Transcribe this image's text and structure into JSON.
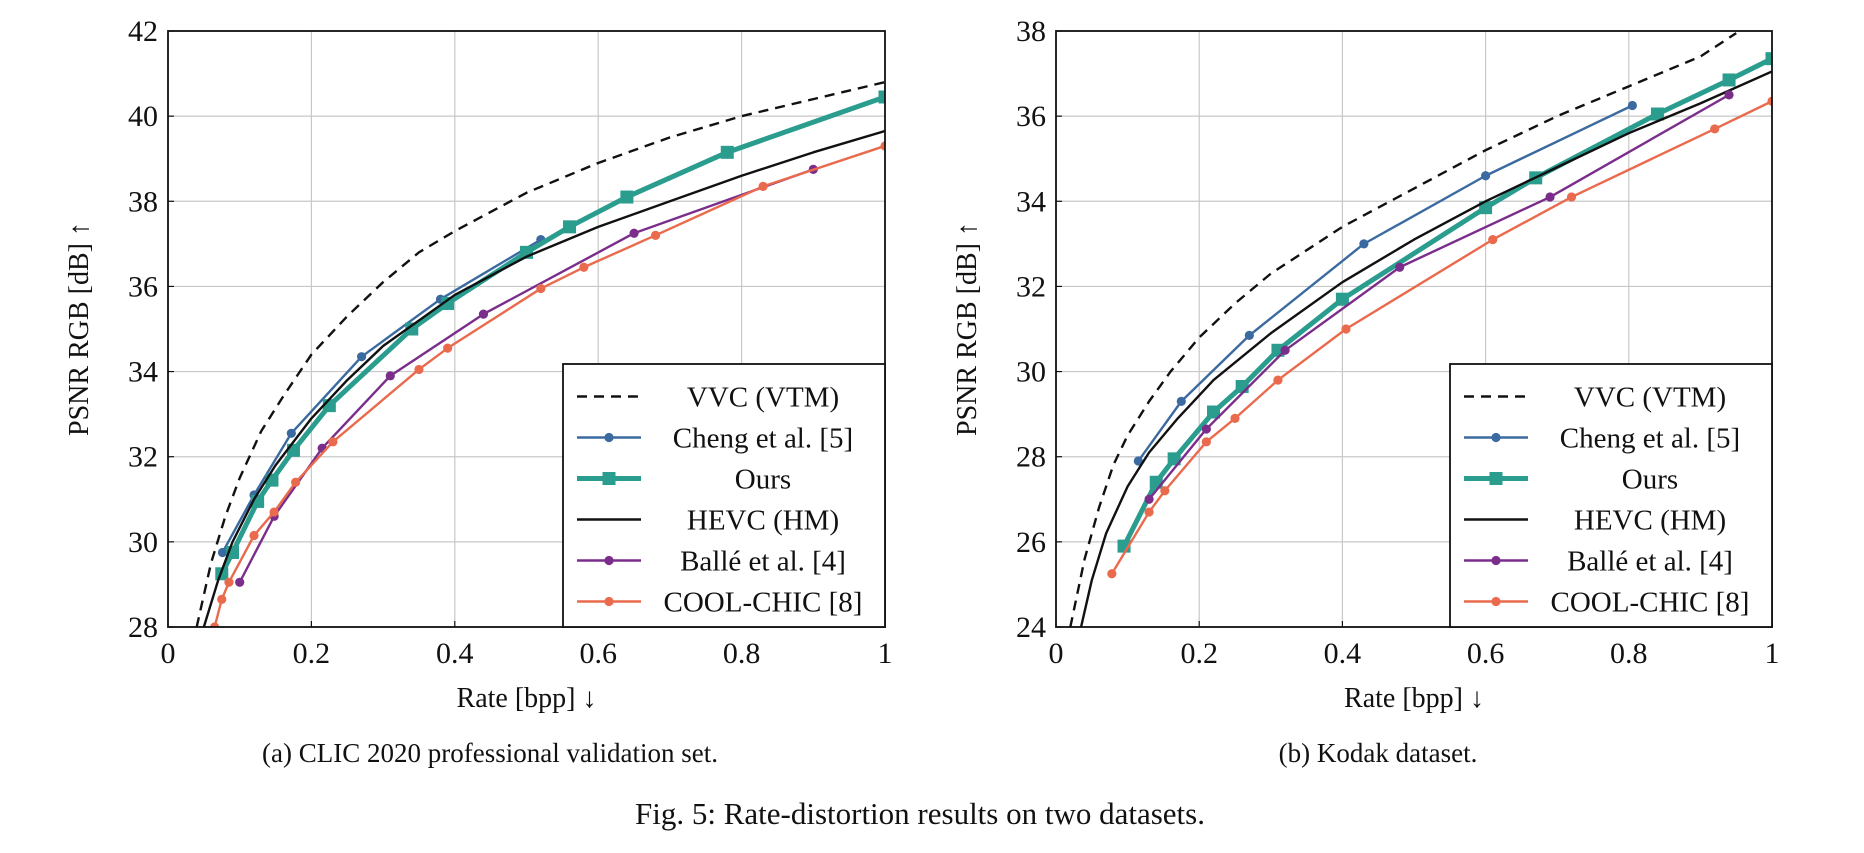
{
  "figure_caption": "Fig. 5: Rate-distortion results on two datasets.",
  "legend_labels": [
    "VVC (VTM)",
    "Cheng et al. [5]",
    "Ours",
    "HEVC (HM)",
    "Ballé et al. [4]",
    "COOL-CHIC [8]"
  ],
  "colors": {
    "VVC (VTM)": "#111111",
    "Cheng et al. [5]": "#3b6aa0",
    "Ours": "#2a9d8f",
    "HEVC (HM)": "#111111",
    "Ballé et al. [4]": "#7b2d8b",
    "COOL-CHIC [8]": "#ea6a4d",
    "grid": "#c8c8c8"
  },
  "chart_data": [
    {
      "type": "line",
      "caption": "(a) CLIC 2020 professional validation set.",
      "xlabel": "Rate [bpp] ↓",
      "ylabel": "PSNR RGB [dB] ↑",
      "xlim": [
        0,
        1
      ],
      "ylim": [
        28,
        42
      ],
      "xticks": [
        0,
        0.2,
        0.4,
        0.6,
        0.8,
        1
      ],
      "xtick_labels": [
        "0",
        "0.2",
        "0.4",
        "0.6",
        "0.8",
        "1"
      ],
      "yticks": [
        28,
        30,
        32,
        34,
        36,
        38,
        40,
        42
      ],
      "ytick_labels": [
        "28",
        "30",
        "32",
        "34",
        "36",
        "38",
        "40",
        "42"
      ],
      "grid": true,
      "legend_position": "bottom-right",
      "series": [
        {
          "name": "VVC (VTM)",
          "style": "dashed",
          "marker": "none",
          "x": [
            0.04,
            0.06,
            0.08,
            0.1,
            0.13,
            0.16,
            0.2,
            0.25,
            0.3,
            0.35,
            0.4,
            0.5,
            0.6,
            0.7,
            0.8,
            0.9,
            1.0
          ],
          "y": [
            28.0,
            29.5,
            30.6,
            31.5,
            32.6,
            33.4,
            34.4,
            35.3,
            36.1,
            36.8,
            37.3,
            38.2,
            38.9,
            39.5,
            40.0,
            40.4,
            40.8
          ]
        },
        {
          "name": "Cheng et al. [5]",
          "style": "solid",
          "marker": "circle",
          "x": [
            0.076,
            0.12,
            0.172,
            0.27,
            0.38,
            0.52
          ],
          "y": [
            29.75,
            31.1,
            32.55,
            34.35,
            35.7,
            37.1
          ]
        },
        {
          "name": "Ours",
          "style": "thick",
          "marker": "square",
          "x": [
            0.075,
            0.09,
            0.125,
            0.145,
            0.175,
            0.225,
            0.34,
            0.39,
            0.5,
            0.56,
            0.64,
            0.78,
            1.0
          ],
          "y": [
            29.25,
            29.75,
            30.95,
            31.45,
            32.15,
            33.2,
            35.0,
            35.6,
            36.8,
            37.4,
            38.1,
            39.15,
            40.45
          ]
        },
        {
          "name": "HEVC (HM)",
          "style": "solid",
          "marker": "none",
          "x": [
            0.05,
            0.07,
            0.09,
            0.12,
            0.15,
            0.2,
            0.25,
            0.3,
            0.4,
            0.5,
            0.6,
            0.7,
            0.8,
            0.9,
            1.0
          ],
          "y": [
            28.0,
            29.1,
            30.0,
            31.0,
            31.8,
            32.9,
            33.8,
            34.6,
            35.8,
            36.7,
            37.4,
            38.0,
            38.6,
            39.15,
            39.65
          ]
        },
        {
          "name": "Ballé et al. [4]",
          "style": "solid",
          "marker": "circle",
          "x": [
            0.1,
            0.148,
            0.215,
            0.31,
            0.44,
            0.65,
            0.9
          ],
          "y": [
            29.05,
            30.6,
            32.2,
            33.9,
            35.35,
            37.25,
            38.75
          ]
        },
        {
          "name": "COOL-CHIC [8]",
          "style": "solid",
          "marker": "circle",
          "x": [
            0.065,
            0.075,
            0.085,
            0.12,
            0.148,
            0.178,
            0.23,
            0.35,
            0.39,
            0.52,
            0.58,
            0.68,
            0.83,
            1.0
          ],
          "y": [
            28.0,
            28.65,
            29.05,
            30.15,
            30.7,
            31.4,
            32.35,
            34.05,
            34.55,
            35.95,
            36.45,
            37.2,
            38.35,
            39.3
          ]
        }
      ]
    },
    {
      "type": "line",
      "caption": "(b) Kodak dataset.",
      "xlabel": "Rate [bpp] ↓",
      "ylabel": "PSNR RGB [dB] ↑",
      "xlim": [
        0,
        1
      ],
      "ylim": [
        24,
        38
      ],
      "xticks": [
        0,
        0.2,
        0.4,
        0.6,
        0.8,
        1
      ],
      "xtick_labels": [
        "0",
        "0.2",
        "0.4",
        "0.6",
        "0.8",
        "1"
      ],
      "yticks": [
        24,
        26,
        28,
        30,
        32,
        34,
        36,
        38
      ],
      "ytick_labels": [
        "24",
        "26",
        "28",
        "30",
        "32",
        "34",
        "36",
        "38"
      ],
      "grid": true,
      "legend_position": "bottom-right",
      "series": [
        {
          "name": "VVC (VTM)",
          "style": "dashed",
          "marker": "none",
          "x": [
            0.02,
            0.04,
            0.06,
            0.08,
            0.1,
            0.13,
            0.16,
            0.2,
            0.25,
            0.3,
            0.4,
            0.5,
            0.6,
            0.7,
            0.8,
            0.9,
            0.95
          ],
          "y": [
            24.0,
            25.6,
            26.8,
            27.8,
            28.5,
            29.3,
            30.0,
            30.8,
            31.6,
            32.3,
            33.4,
            34.3,
            35.2,
            36.0,
            36.7,
            37.4,
            37.95
          ]
        },
        {
          "name": "Cheng et al. [5]",
          "style": "solid",
          "marker": "circle",
          "x": [
            0.115,
            0.175,
            0.27,
            0.43,
            0.6,
            0.805
          ],
          "y": [
            27.9,
            29.3,
            30.85,
            33.0,
            34.6,
            36.25
          ]
        },
        {
          "name": "Ours",
          "style": "thick",
          "marker": "square",
          "x": [
            0.095,
            0.14,
            0.165,
            0.22,
            0.26,
            0.31,
            0.4,
            0.6,
            0.67,
            0.84,
            0.94,
            1.0
          ],
          "y": [
            25.9,
            27.4,
            27.95,
            29.05,
            29.65,
            30.5,
            31.7,
            33.85,
            34.55,
            36.05,
            36.85,
            37.35
          ]
        },
        {
          "name": "HEVC (HM)",
          "style": "solid",
          "marker": "none",
          "x": [
            0.035,
            0.05,
            0.07,
            0.1,
            0.13,
            0.17,
            0.22,
            0.3,
            0.4,
            0.5,
            0.6,
            0.7,
            0.8,
            0.9,
            1.0
          ],
          "y": [
            24.0,
            25.1,
            26.2,
            27.3,
            28.1,
            28.9,
            29.8,
            30.9,
            32.1,
            33.1,
            34.0,
            34.8,
            35.6,
            36.3,
            37.05
          ]
        },
        {
          "name": "Ballé et al. [4]",
          "style": "solid",
          "marker": "circle",
          "x": [
            0.13,
            0.21,
            0.32,
            0.48,
            0.69,
            0.94
          ],
          "y": [
            27.0,
            28.65,
            30.5,
            32.45,
            34.1,
            36.5
          ]
        },
        {
          "name": "COOL-CHIC [8]",
          "style": "solid",
          "marker": "circle",
          "x": [
            0.078,
            0.13,
            0.152,
            0.21,
            0.25,
            0.31,
            0.405,
            0.61,
            0.72,
            0.92,
            1.0
          ],
          "y": [
            25.25,
            26.7,
            27.2,
            28.35,
            28.9,
            29.8,
            31.0,
            33.1,
            34.1,
            35.7,
            36.35
          ]
        }
      ]
    }
  ]
}
